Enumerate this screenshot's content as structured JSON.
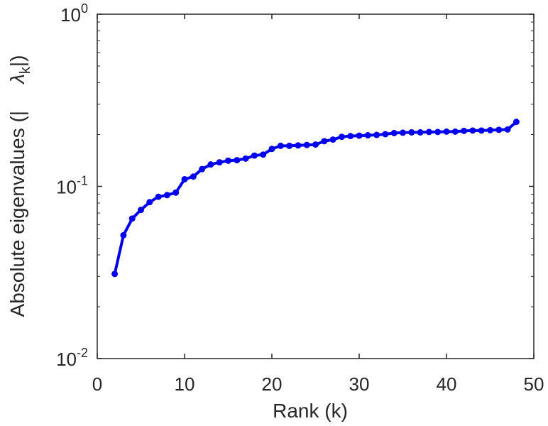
{
  "chart_data": {
    "type": "line",
    "xlabel": "Rank (k)",
    "ylabel_parts": [
      "Absolute eigenvalues (|",
      "λ",
      "k",
      "|)"
    ],
    "xlim": [
      0,
      50
    ],
    "ylim": [
      0.01,
      1
    ],
    "yscale": "log",
    "grid": false,
    "x_ticks": [
      "0",
      "10",
      "20",
      "30",
      "40",
      "50"
    ],
    "x_tick_values": [
      0,
      10,
      20,
      30,
      40,
      50
    ],
    "y_ticks": [
      {
        "value": 1,
        "base": "10",
        "exp": "0"
      },
      {
        "value": 0.1,
        "base": "10",
        "exp": "-1"
      },
      {
        "value": 0.01,
        "base": "10",
        "exp": "-2"
      }
    ],
    "color": "#0000ee",
    "series": [
      {
        "x": [
          2,
          3,
          4,
          5,
          6,
          7,
          8,
          9,
          10,
          11,
          12,
          13,
          14,
          15,
          16,
          17,
          18,
          19,
          20,
          21,
          22,
          23,
          24,
          25,
          26,
          27,
          28,
          29,
          30,
          31,
          32,
          33,
          34,
          35,
          36,
          37,
          38,
          39,
          40,
          41,
          42,
          43,
          44,
          45,
          46,
          47,
          48
        ],
        "values": [
          0.031,
          0.052,
          0.065,
          0.073,
          0.081,
          0.087,
          0.089,
          0.092,
          0.11,
          0.114,
          0.126,
          0.134,
          0.138,
          0.141,
          0.142,
          0.145,
          0.151,
          0.153,
          0.165,
          0.172,
          0.172,
          0.173,
          0.174,
          0.175,
          0.183,
          0.187,
          0.194,
          0.196,
          0.197,
          0.198,
          0.199,
          0.201,
          0.204,
          0.205,
          0.206,
          0.206,
          0.207,
          0.207,
          0.208,
          0.208,
          0.21,
          0.211,
          0.211,
          0.212,
          0.213,
          0.214,
          0.237
        ]
      }
    ]
  }
}
